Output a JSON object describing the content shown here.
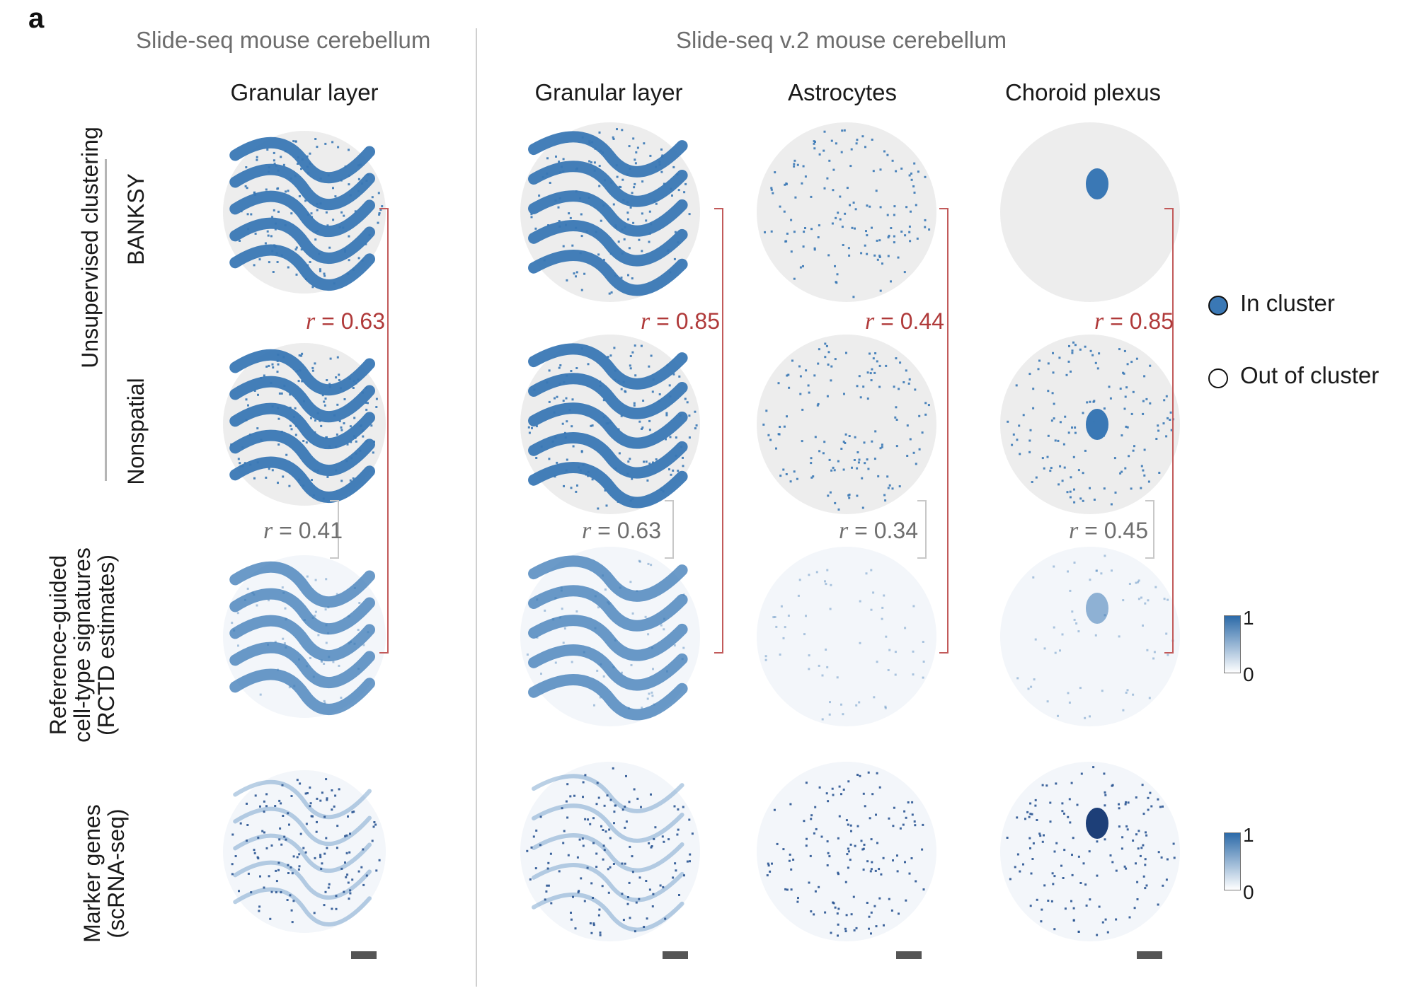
{
  "panel_label": "a",
  "headers": {
    "left": "Slide-seq mouse cerebellum",
    "right": "Slide-seq v.2 mouse cerebellum"
  },
  "columns": [
    {
      "title": "Granular layer"
    },
    {
      "title": "Granular layer"
    },
    {
      "title": "Astrocytes"
    },
    {
      "title": "Choroid plexus"
    }
  ],
  "row_groups": {
    "unsupervised": "Unsupervised clustering",
    "banksy": "BANKSY",
    "nonspatial": "Nonspatial",
    "reference_line1": "Reference-guided",
    "reference_line2": "cell-type signatures",
    "reference_line3": "(RCTD estimates)",
    "marker_line1": "Marker genes",
    "marker_line2": "(scRNA-seq)"
  },
  "correlations": {
    "r_symbol": "r",
    "banksy": [
      " = 0.63",
      " = 0.85",
      " = 0.44",
      " = 0.85"
    ],
    "nonspatial": [
      " = 0.41",
      " = 0.63",
      " = 0.34",
      " = 0.45"
    ]
  },
  "legend": {
    "in_cluster": "In cluster",
    "out_cluster": "Out of cluster",
    "in_color": "#3a78b5"
  },
  "colorbars": [
    {
      "max": "1",
      "min": "0"
    },
    {
      "max": "1",
      "min": "0"
    }
  ],
  "colors": {
    "cluster_blue": "#3a78b5",
    "red_bracket": "#c25a5a",
    "grey_bracket": "#c8c8c8",
    "background_dot": "#ededed"
  }
}
